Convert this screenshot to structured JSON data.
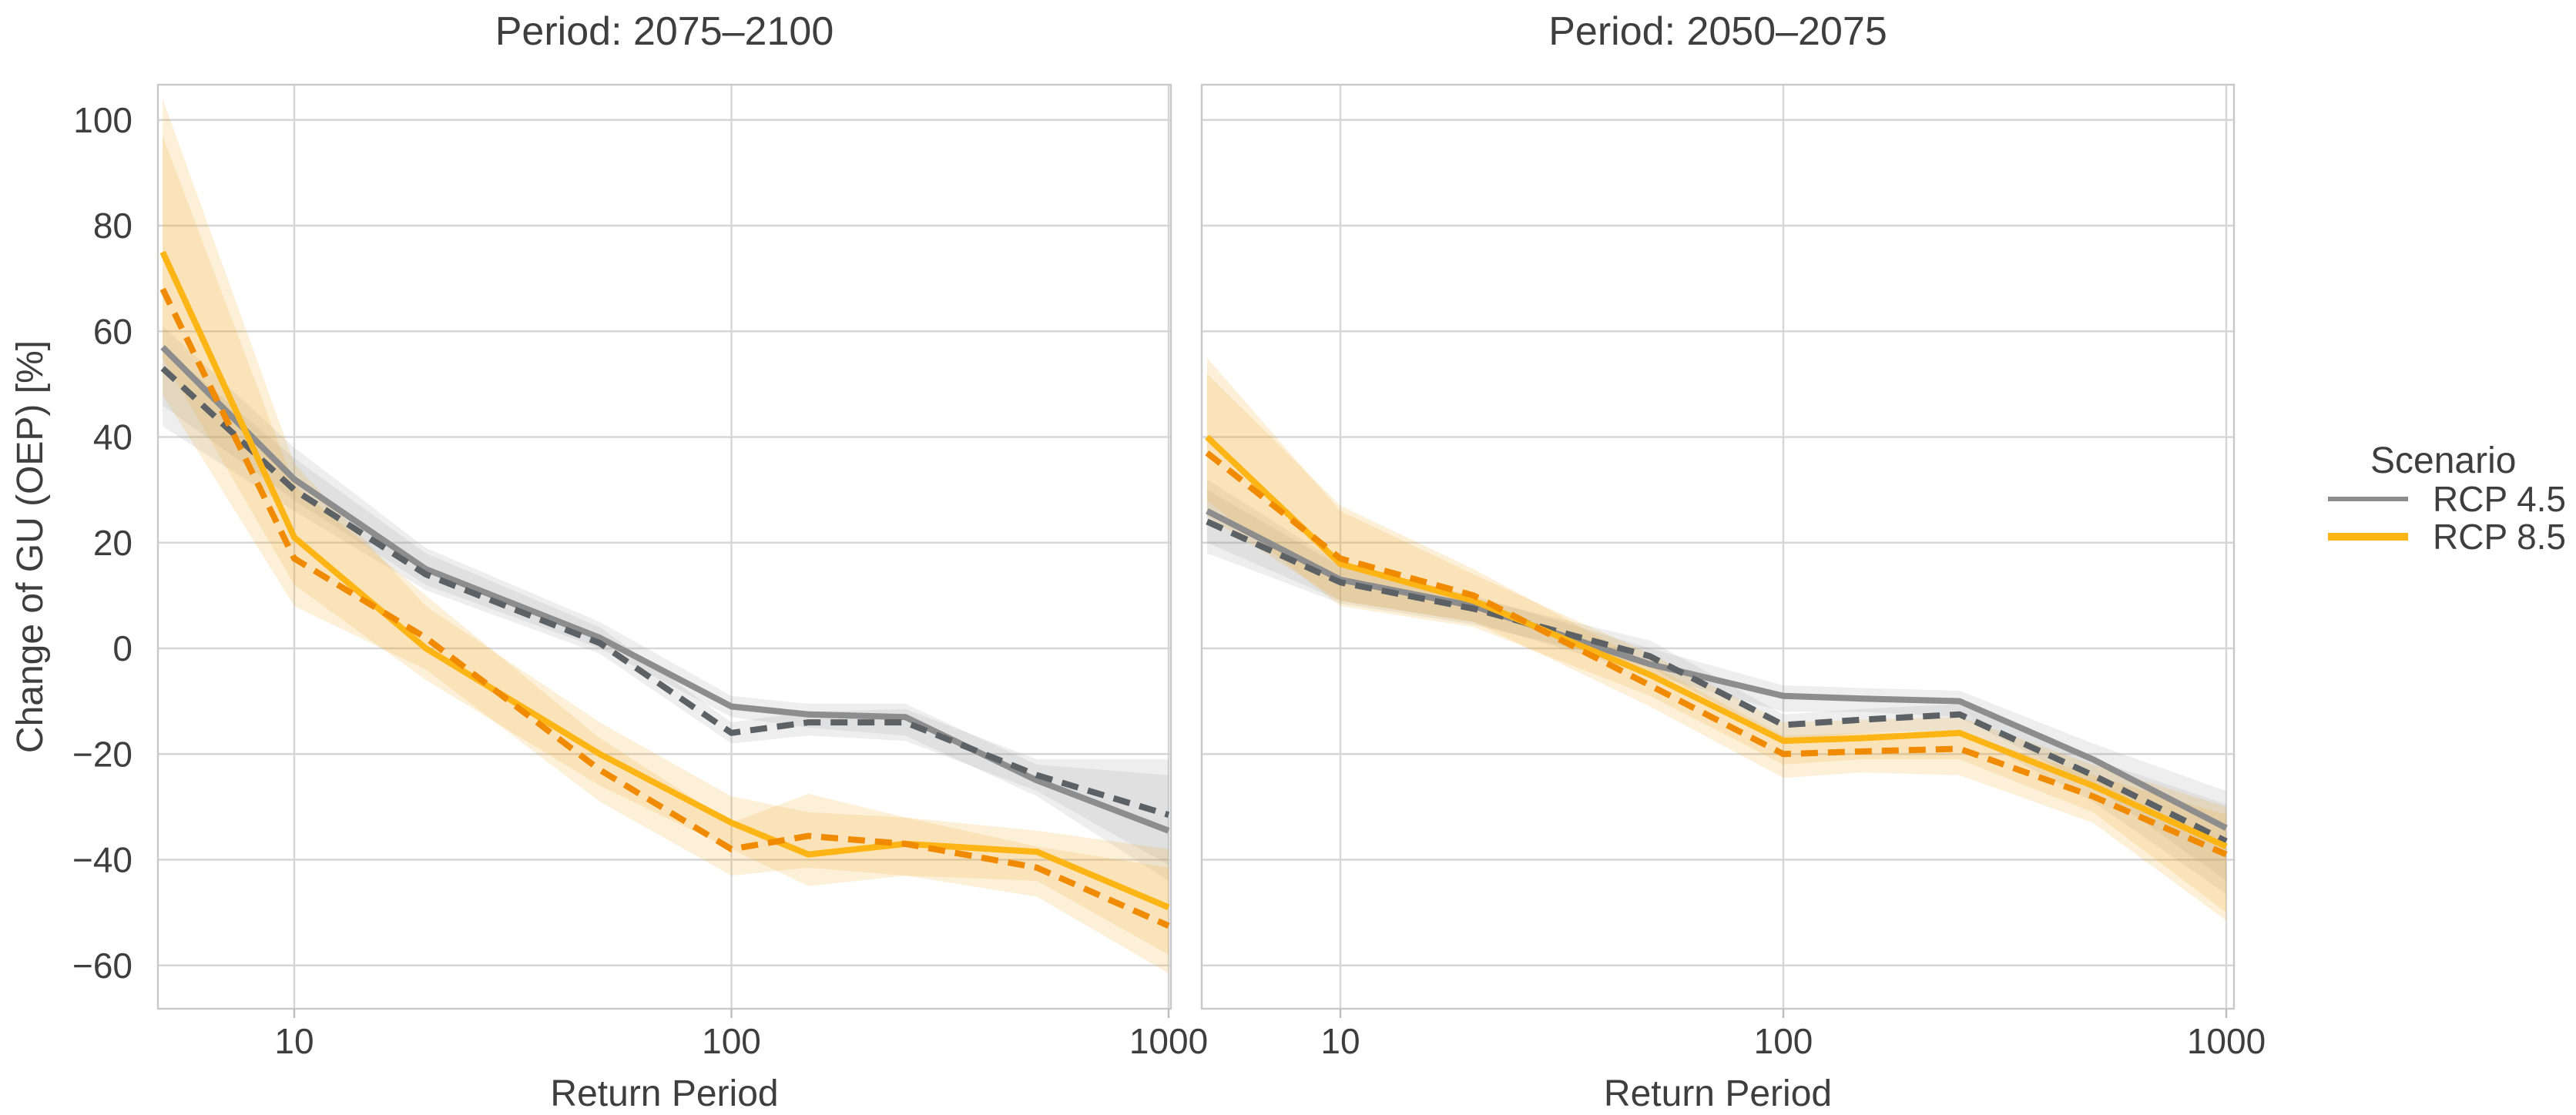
{
  "figure": {
    "background": "#ffffff",
    "description": "Faceted line chart of change of GU (OEP) versus return period for two future periods and two RCP scenarios, with mean (solid), median (dashed) lines and uncertainty bands"
  },
  "chart_data": {
    "type": "line",
    "x_scale": "log",
    "x": [
      5,
      10,
      20,
      50,
      100,
      150,
      250,
      500,
      1000
    ],
    "xticks": [
      10,
      100,
      1000
    ],
    "yticks": [
      100,
      80,
      60,
      40,
      20,
      0,
      -20,
      -40,
      -60
    ],
    "ylim": [
      -68,
      107
    ],
    "xlim": [
      5,
      1000
    ],
    "xlabel": "Return Period",
    "ylabel": "Change of GU (OEP) [%]",
    "grid": "on",
    "styles": {
      "grid_color": "#d6d6d6",
      "border_color": "#c9c9c9",
      "text_color": "#3e3e3e",
      "tick_color": "#bdbdbd",
      "band_opacity": 0.17
    },
    "legend": {
      "title": "Scenario",
      "position": "right",
      "entries": [
        {
          "label": "RCP 4.5",
          "color": "#8d8d8d"
        },
        {
          "label": "RCP 8.5",
          "color": "#fdb515"
        }
      ]
    },
    "panels": [
      {
        "title": "Period: 2075–2100",
        "series": [
          {
            "id": "rcp45-solid",
            "scenario": "RCP 4.5",
            "line": "solid",
            "color": "#8d8d8d",
            "band_color": "#9b9b9b",
            "values": [
              57,
              32,
              15,
              2,
              -11,
              -12.5,
              -13,
              -25,
              -34.5
            ],
            "band_hi": [
              61,
              38,
              19,
              5,
              -9,
              -10.5,
              -10.5,
              -22,
              -24
            ],
            "band_lo": [
              46,
              28,
              12,
              0,
              -13,
              -15,
              -16.5,
              -28,
              -44
            ]
          },
          {
            "id": "rcp45-dashed",
            "scenario": "RCP 4.5",
            "line": "dashed",
            "color": "#5c6165",
            "band_color": "#9b9b9b",
            "values": [
              53,
              30,
              14,
              1,
              -16,
              -14,
              -14,
              -24,
              -31.5
            ],
            "band_hi": [
              57,
              36,
              18,
              4,
              -14,
              -12,
              -11.5,
              -21,
              -21
            ],
            "band_lo": [
              42,
              26,
              11,
              -1,
              -18,
              -16.5,
              -17.5,
              -27,
              -41
            ]
          },
          {
            "id": "rcp85-solid",
            "scenario": "RCP 8.5",
            "line": "solid",
            "color": "#fdb515",
            "band_color": "#f6a81e",
            "values": [
              75,
              21,
              0,
              -20,
              -33,
              -39,
              -37,
              -38.5,
              -49
            ],
            "band_hi": [
              104,
              35,
              8,
              -14,
              -28,
              -31,
              -32,
              -34.5,
              -38
            ],
            "band_lo": [
              55,
              12,
              -6,
              -26,
              -38,
              -45,
              -43,
              -44,
              -58
            ]
          },
          {
            "id": "rcp85-dashed",
            "scenario": "RCP 8.5",
            "line": "dashed",
            "color": "#f08a00",
            "band_color": "#f6a81e",
            "values": [
              68,
              17,
              2,
              -23,
              -38,
              -35.5,
              -37,
              -41.5,
              -52.5
            ],
            "band_hi": [
              97,
              31,
              10,
              -17,
              -33,
              -27.5,
              -32,
              -37.5,
              -41.5
            ],
            "band_lo": [
              48,
              8,
              -4,
              -29,
              -43,
              -41.5,
              -43,
              -47,
              -61.5
            ]
          }
        ]
      },
      {
        "title": "Period: 2050–2075",
        "series": [
          {
            "id": "rcp45-solid",
            "scenario": "RCP 4.5",
            "line": "solid",
            "color": "#8d8d8d",
            "band_color": "#9b9b9b",
            "values": [
              26,
              13,
              8,
              -3,
              -9,
              -9.5,
              -10,
              -21,
              -34
            ],
            "band_hi": [
              32,
              16,
              10,
              0,
              -7,
              -7.5,
              -8,
              -18,
              -27
            ],
            "band_lo": [
              20,
              9,
              5,
              -5,
              -12,
              -12,
              -13,
              -26,
              -44
            ]
          },
          {
            "id": "rcp45-dashed",
            "scenario": "RCP 4.5",
            "line": "dashed",
            "color": "#5c6165",
            "band_color": "#9b9b9b",
            "values": [
              24,
              12.5,
              7.5,
              -1.5,
              -14.5,
              -13.5,
              -12.5,
              -24,
              -36.5
            ],
            "band_hi": [
              30,
              15.5,
              9.5,
              1.5,
              -12.5,
              -11.5,
              -10.5,
              -21,
              -29.5
            ],
            "band_lo": [
              18,
              8.5,
              4.5,
              -3.5,
              -17.5,
              -16,
              -15.5,
              -29,
              -46.5
            ]
          },
          {
            "id": "rcp85-solid",
            "scenario": "RCP 8.5",
            "line": "solid",
            "color": "#fdb515",
            "band_color": "#f6a81e",
            "values": [
              40,
              16,
              9,
              -5,
              -17.5,
              -17,
              -16,
              -26,
              -37.5
            ],
            "band_hi": [
              55,
              26,
              14,
              -1,
              -14,
              -13.5,
              -13,
              -22,
              -30
            ],
            "band_lo": [
              28,
              8,
              4,
              -9,
              -22,
              -21,
              -21,
              -31,
              -50
            ]
          },
          {
            "id": "rcp85-dashed",
            "scenario": "RCP 8.5",
            "line": "dashed",
            "color": "#f08a00",
            "band_color": "#f6a81e",
            "values": [
              37,
              17,
              10,
              -7,
              -20,
              -19.5,
              -19,
              -28,
              -39
            ],
            "band_hi": [
              52,
              27,
              15,
              -3,
              -16.5,
              -16,
              -16,
              -24,
              -31.5
            ],
            "band_lo": [
              25,
              9,
              5,
              -11,
              -24.5,
              -23.5,
              -24,
              -33,
              -51.5
            ]
          }
        ]
      }
    ]
  }
}
